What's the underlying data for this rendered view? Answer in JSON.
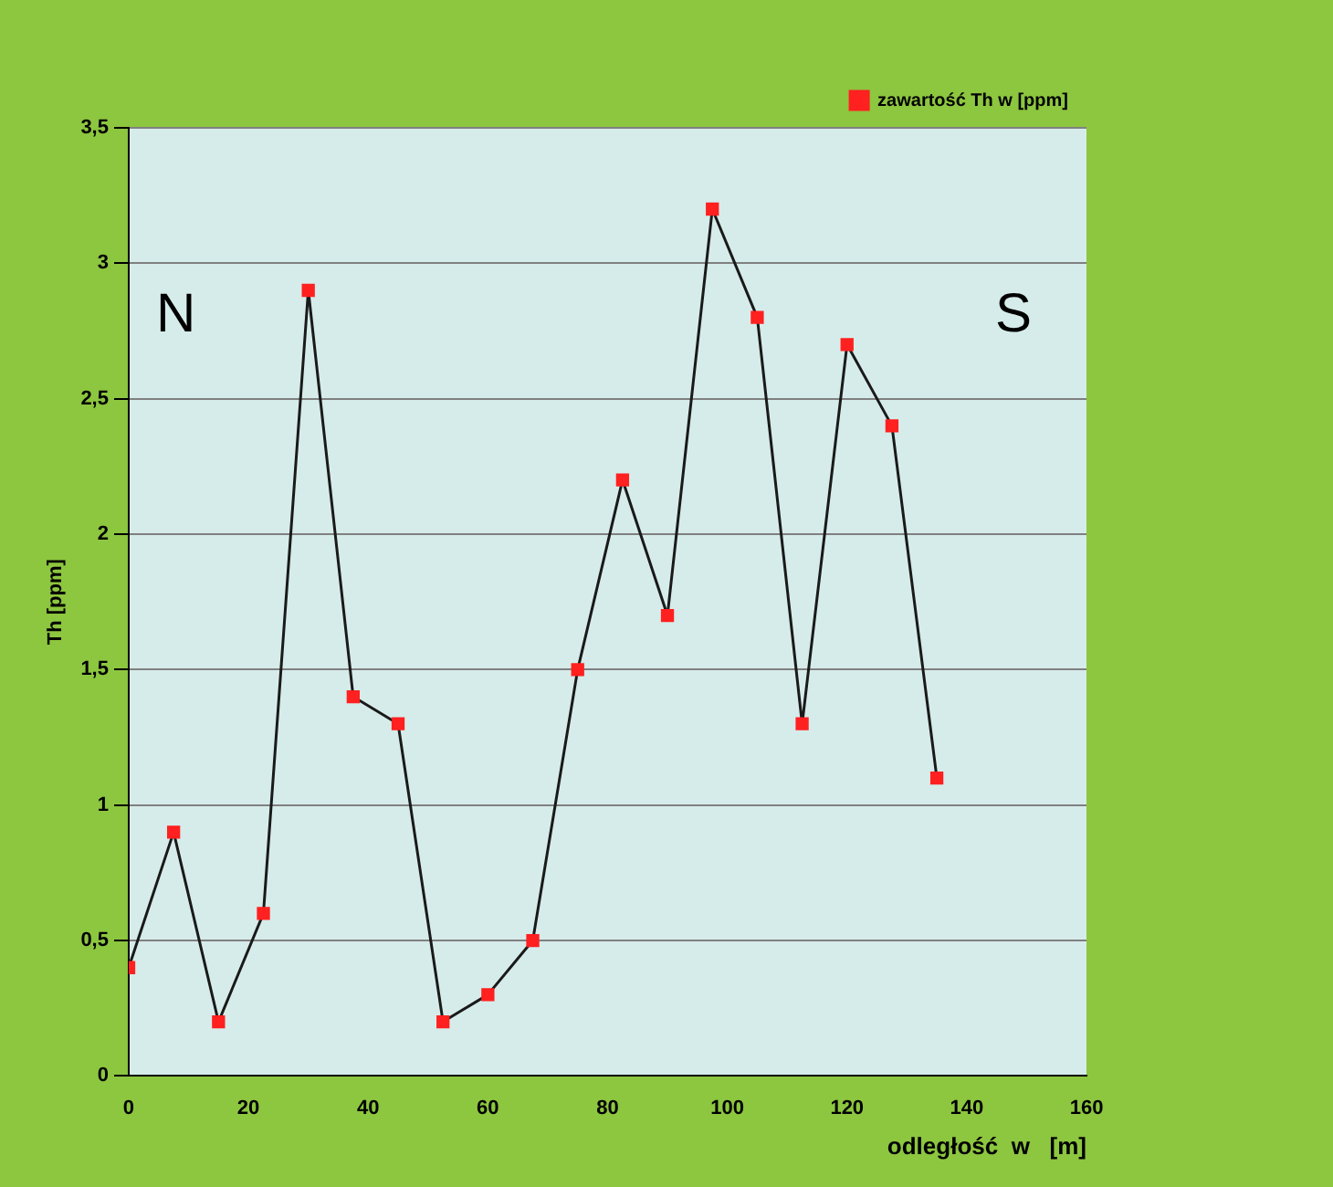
{
  "chart_data": {
    "type": "line",
    "xlabel": "odległość  w   [m]",
    "ylabel": "Th [ppm]",
    "annotations": [
      "N",
      "S"
    ],
    "x": [
      0,
      7.5,
      15,
      22.5,
      30,
      37.5,
      45,
      52.5,
      60,
      67.5,
      75,
      82.5,
      90,
      97.5,
      105,
      112.5,
      120,
      127.5,
      135
    ],
    "series": [
      {
        "name": "zawartość Th w [ppm]",
        "color": "#1a1a1a",
        "values": [
          0.4,
          0.9,
          0.2,
          0.6,
          2.9,
          1.4,
          1.3,
          0.2,
          0.3,
          0.5,
          1.5,
          2.2,
          1.7,
          3.2,
          2.8,
          1.3,
          2.7,
          2.4,
          1.1
        ]
      }
    ],
    "marker": "square",
    "line_style": "solid",
    "grid": "y",
    "legend": "top right",
    "xlim": [
      0,
      160
    ],
    "xticks": [
      0,
      20,
      40,
      60,
      80,
      100,
      120,
      140,
      160
    ],
    "ylim": [
      0,
      3.5
    ],
    "yticks": [
      0,
      {
        "value": 0.5,
        "label": "0,5"
      },
      1,
      {
        "value": 1.5,
        "label": "1,5"
      },
      2,
      {
        "value": 2.5,
        "label": "2,5"
      },
      3,
      {
        "value": 3.5,
        "label": "3,5"
      }
    ]
  }
}
